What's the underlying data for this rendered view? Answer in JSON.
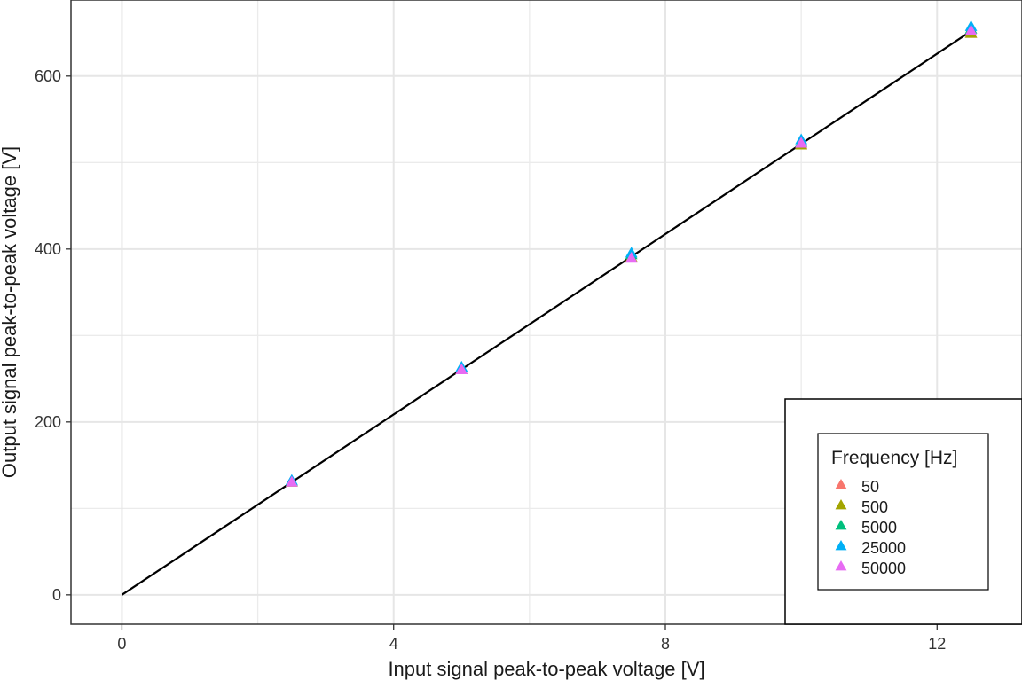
{
  "chart_data": {
    "type": "scatter",
    "xlabel": "Input signal peak-to-peak voltage [V]",
    "ylabel": "Output signal peak-to-peak voltage [V]",
    "xlim": [
      -0.75,
      13.25
    ],
    "ylim": [
      -34,
      688
    ],
    "x_ticks": [
      "0",
      "4",
      "8",
      "12"
    ],
    "y_ticks": [
      "0",
      "200",
      "400",
      "600"
    ],
    "x_tick_values": [
      0,
      4,
      8,
      12
    ],
    "y_tick_values": [
      0,
      200,
      400,
      600
    ],
    "grid": true,
    "legend": {
      "title": "Frequency [Hz]",
      "placement": "bottom-right"
    },
    "series": [
      {
        "name": "50",
        "color": "#F8766D",
        "points": [
          [
            2.5,
            130
          ],
          [
            5.0,
            260
          ],
          [
            7.5,
            390
          ],
          [
            10.0,
            521
          ],
          [
            12.5,
            649
          ]
        ]
      },
      {
        "name": "500",
        "color": "#A3A500",
        "points": [
          [
            2.5,
            130
          ],
          [
            5.0,
            260
          ],
          [
            7.5,
            390
          ],
          [
            10.0,
            520
          ],
          [
            12.5,
            649
          ]
        ]
      },
      {
        "name": "5000",
        "color": "#00BF7D",
        "points": [
          [
            2.5,
            131
          ],
          [
            5.0,
            262
          ],
          [
            7.5,
            393
          ],
          [
            10.0,
            523
          ],
          [
            12.5,
            654
          ]
        ]
      },
      {
        "name": "25000",
        "color": "#00B0F6",
        "points": [
          [
            2.5,
            132
          ],
          [
            5.0,
            263
          ],
          [
            7.5,
            395
          ],
          [
            10.0,
            526
          ],
          [
            12.5,
            657
          ]
        ]
      },
      {
        "name": "50000",
        "color": "#E76BF3",
        "points": [
          [
            2.5,
            130
          ],
          [
            5.0,
            260
          ],
          [
            7.5,
            389
          ],
          [
            10.0,
            522
          ],
          [
            12.5,
            652
          ]
        ]
      }
    ],
    "fit_line": {
      "x": [
        0,
        12.5
      ],
      "y": [
        0,
        652
      ],
      "color": "#000000"
    }
  }
}
